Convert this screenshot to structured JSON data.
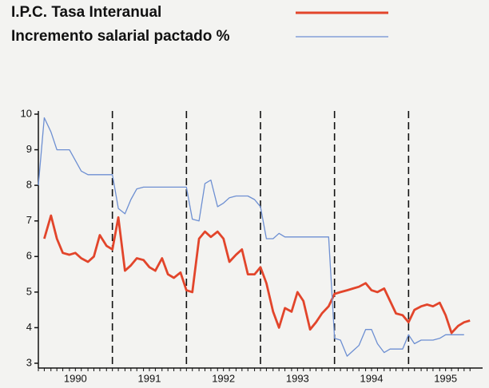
{
  "chart_data": {
    "type": "line",
    "x": [
      1990,
      1990.08,
      1990.17,
      1990.25,
      1990.33,
      1990.42,
      1990.5,
      1990.58,
      1990.67,
      1990.75,
      1990.83,
      1990.92,
      1991,
      1991.08,
      1991.17,
      1991.25,
      1991.33,
      1991.42,
      1991.5,
      1991.58,
      1991.67,
      1991.75,
      1991.83,
      1991.92,
      1992,
      1992.08,
      1992.17,
      1992.25,
      1992.33,
      1992.42,
      1992.5,
      1992.58,
      1992.67,
      1992.75,
      1992.83,
      1992.92,
      1993,
      1993.08,
      1993.17,
      1993.25,
      1993.33,
      1993.42,
      1993.5,
      1993.58,
      1993.67,
      1993.75,
      1993.83,
      1993.92,
      1994,
      1994.08,
      1994.17,
      1994.25,
      1994.33,
      1994.42,
      1994.5,
      1994.58,
      1994.67,
      1994.75,
      1994.83,
      1994.92,
      1995,
      1995.08,
      1995.17,
      1995.25,
      1995.33,
      1995.42,
      1995.5,
      1995.58,
      1995.67,
      1995.75,
      1995.83
    ],
    "series": [
      {
        "name": "I.P.C. Tasa Interanual",
        "color": "#e2452b",
        "values": [
          null,
          6.5,
          7.15,
          6.5,
          6.1,
          6.05,
          6.1,
          5.95,
          5.85,
          6.0,
          6.6,
          6.3,
          6.2,
          7.1,
          5.6,
          5.75,
          5.95,
          5.9,
          5.7,
          5.6,
          5.95,
          5.5,
          5.4,
          5.55,
          5.05,
          5.0,
          6.5,
          6.7,
          6.55,
          6.7,
          6.5,
          5.85,
          6.05,
          6.2,
          5.5,
          5.5,
          5.7,
          5.25,
          4.45,
          4.0,
          4.55,
          4.45,
          5.0,
          4.75,
          3.95,
          4.15,
          4.4,
          4.6,
          4.95,
          5.0,
          5.05,
          5.1,
          5.15,
          5.25,
          5.05,
          5.0,
          5.1,
          4.75,
          4.4,
          4.35,
          4.15,
          4.5,
          4.6,
          4.65,
          4.6,
          4.7,
          4.35,
          3.85,
          4.05,
          4.15,
          4.2
        ]
      },
      {
        "name": "Incremento salarial pactado %",
        "color": "#6d8fd2",
        "values": [
          8.0,
          9.9,
          9.5,
          9.0,
          9.0,
          9.0,
          8.7,
          8.4,
          8.3,
          8.3,
          8.3,
          8.3,
          8.3,
          7.35,
          7.2,
          7.6,
          7.9,
          7.95,
          7.95,
          7.95,
          7.95,
          7.95,
          7.95,
          7.95,
          7.95,
          7.05,
          7.0,
          8.05,
          8.15,
          7.4,
          7.5,
          7.65,
          7.7,
          7.7,
          7.7,
          7.6,
          7.4,
          6.5,
          6.5,
          6.65,
          6.55,
          6.55,
          6.55,
          6.55,
          6.55,
          6.55,
          6.55,
          6.55,
          3.7,
          3.65,
          3.2,
          3.35,
          3.5,
          3.95,
          3.95,
          3.55,
          3.3,
          3.4,
          3.4,
          3.4,
          3.8,
          3.55,
          3.65,
          3.65,
          3.65,
          3.7,
          3.8,
          3.8,
          3.8,
          3.8,
          null
        ]
      }
    ],
    "xlim": [
      1990,
      1996
    ],
    "xticks": [
      {
        "value": 1990.5,
        "label": "1990"
      },
      {
        "value": 1991.5,
        "label": "1991"
      },
      {
        "value": 1992.5,
        "label": "1992"
      },
      {
        "value": 1993.5,
        "label": "1993"
      },
      {
        "value": 1994.5,
        "label": "1994"
      },
      {
        "value": 1995.5,
        "label": "1995"
      }
    ],
    "ylim": [
      3,
      10
    ],
    "yticks": [
      3,
      4,
      5,
      6,
      7,
      8,
      9,
      10
    ]
  }
}
